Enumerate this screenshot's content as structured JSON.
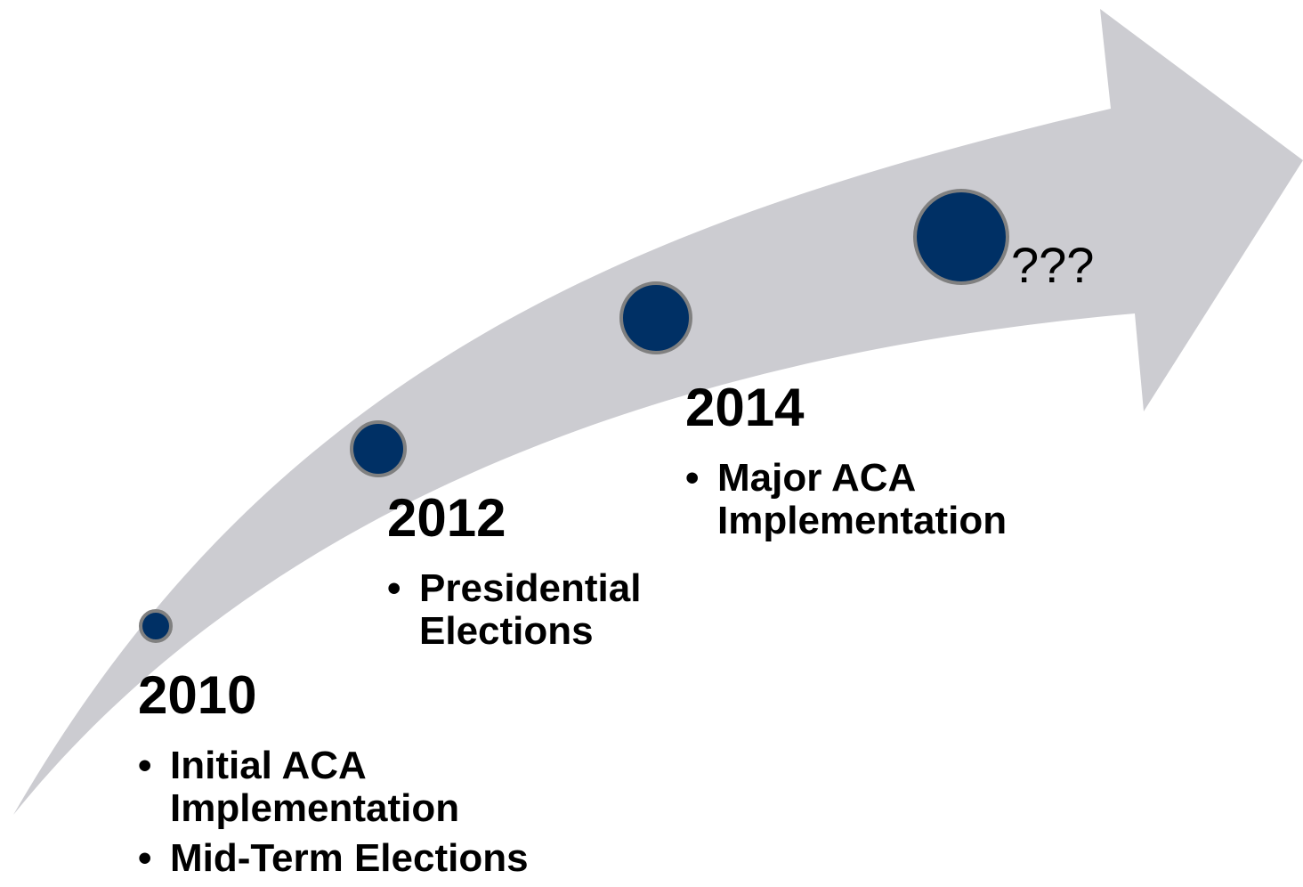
{
  "colors": {
    "arrow": "#ccccd1",
    "node_fill": "#003065",
    "node_stroke": "#808080",
    "text": "#000000"
  },
  "milestones": [
    {
      "year": "2010",
      "bullet_symbol": "•",
      "bullets": [
        "Initial ACA Implementation",
        "Mid-Term Elections"
      ]
    },
    {
      "year": "2012",
      "bullet_symbol": "•",
      "bullets": [
        "Presidential Elections"
      ]
    },
    {
      "year": "2014",
      "bullet_symbol": "•",
      "bullets": [
        "Major ACA Implementation"
      ]
    }
  ],
  "future": {
    "label": "???"
  }
}
